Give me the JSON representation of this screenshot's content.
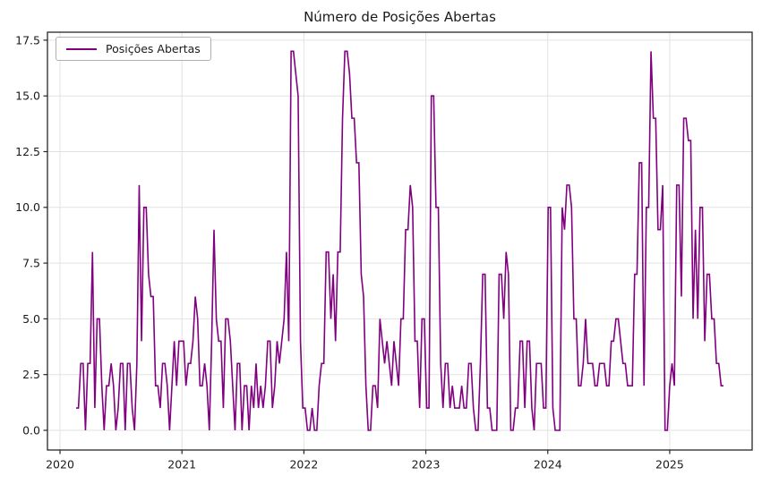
{
  "chart_data": {
    "type": "line",
    "title": "Número de Posições Abertas",
    "legend": {
      "label": "Posições Abertas",
      "position": "upper left"
    },
    "xlabel": "",
    "ylabel": "",
    "grid": true,
    "colors": {
      "line": "#800080",
      "grid": "#e2e2e2",
      "spine": "#262626",
      "background": "#ffffff"
    },
    "line_width": 1.6,
    "xticks": [
      2020,
      2021,
      2022,
      2023,
      2024,
      2025
    ],
    "xtick_labels": [
      "2020",
      "2021",
      "2022",
      "2023",
      "2024",
      "2025"
    ],
    "yticks": [
      0.0,
      2.5,
      5.0,
      7.5,
      10.0,
      12.5,
      15.0,
      17.5
    ],
    "ytick_labels": [
      "0.0",
      "2.5",
      "5.0",
      "7.5",
      "10.0",
      "12.5",
      "15.0",
      "17.5"
    ],
    "xlim": [
      2019.897,
      2025.676
    ],
    "ylim": [
      -0.883,
      17.857
    ],
    "series": [
      {
        "name": "Posições Abertas",
        "x_start_year": 2020.132,
        "x_step_years": 0.019165,
        "values": [
          1,
          1,
          3,
          3,
          0,
          3,
          3,
          8,
          1,
          5,
          5,
          2,
          0,
          2,
          2,
          3,
          2,
          0,
          1,
          3,
          3,
          0,
          3,
          3,
          1,
          0,
          3,
          11,
          4,
          10,
          10,
          7,
          6,
          6,
          2,
          2,
          1,
          3,
          3,
          2,
          0,
          2,
          4,
          2,
          4,
          4,
          4,
          2,
          3,
          3,
          4,
          6,
          5,
          2,
          2,
          3,
          2,
          0,
          4,
          9,
          5,
          4,
          4,
          1,
          5,
          5,
          4,
          2,
          0,
          3,
          3,
          0,
          2,
          2,
          0,
          2,
          1,
          3,
          1,
          2,
          1,
          2,
          4,
          4,
          1,
          2,
          4,
          3,
          4,
          5,
          8,
          4,
          17,
          17,
          16,
          15,
          4,
          1,
          1,
          0,
          0,
          1,
          0,
          0,
          2,
          3,
          3,
          8,
          8,
          5,
          7,
          4,
          8,
          8,
          14,
          17,
          17,
          16,
          14,
          14,
          12,
          12,
          7,
          6,
          2,
          0,
          0,
          2,
          2,
          1,
          5,
          4,
          3,
          4,
          3,
          2,
          4,
          3,
          2,
          5,
          5,
          9,
          9,
          11,
          10,
          4,
          4,
          1,
          5,
          5,
          1,
          1,
          15,
          15,
          10,
          10,
          3,
          1,
          3,
          3,
          1,
          2,
          1,
          1,
          1,
          2,
          1,
          1,
          3,
          3,
          1,
          0,
          0,
          3,
          7,
          7,
          1,
          1,
          0,
          0,
          0,
          7,
          7,
          5,
          8,
          7,
          0,
          0,
          1,
          1,
          4,
          4,
          1,
          4,
          4,
          1,
          0,
          3,
          3,
          3,
          1,
          1,
          10,
          10,
          1,
          0,
          0,
          0,
          10,
          9,
          11,
          11,
          10,
          5,
          5,
          2,
          2,
          3,
          5,
          3,
          3,
          3,
          2,
          2,
          3,
          3,
          3,
          2,
          2,
          4,
          4,
          5,
          5,
          4,
          3,
          3,
          2,
          2,
          2,
          7,
          7,
          12,
          12,
          2,
          10,
          10,
          17,
          14,
          14,
          9,
          9,
          11,
          0,
          0,
          2,
          3,
          2,
          11,
          11,
          6,
          14,
          14,
          13,
          13,
          5,
          9,
          5,
          10,
          10,
          4,
          7,
          7,
          5,
          5,
          3,
          3,
          2,
          2
        ]
      }
    ]
  }
}
